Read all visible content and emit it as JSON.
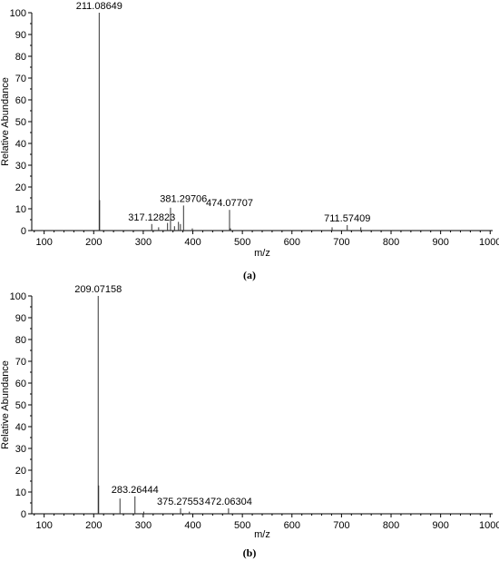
{
  "chart_data": [
    {
      "type": "bar",
      "caption": "(a)",
      "xlabel": "m/z",
      "ylabel": "Relative Abundance",
      "xlim": [
        75,
        1005
      ],
      "ylim": [
        0,
        100
      ],
      "x_ticks": [
        100,
        200,
        300,
        400,
        500,
        600,
        700,
        800,
        900,
        1000
      ],
      "y_ticks": [
        0,
        10,
        20,
        30,
        40,
        50,
        60,
        70,
        80,
        90,
        100
      ],
      "peaks": [
        {
          "x": 211.08649,
          "y": 100,
          "label": "211.08649"
        },
        {
          "x": 212.0,
          "y": 14
        },
        {
          "x": 317.12823,
          "y": 3,
          "label": "317.12823"
        },
        {
          "x": 331.0,
          "y": 1.5
        },
        {
          "x": 349.0,
          "y": 3.5
        },
        {
          "x": 355.0,
          "y": 10.5
        },
        {
          "x": 363.0,
          "y": 2
        },
        {
          "x": 371.0,
          "y": 4
        },
        {
          "x": 375.0,
          "y": 3
        },
        {
          "x": 381.29706,
          "y": 11.5,
          "label": "381.29706"
        },
        {
          "x": 399.0,
          "y": 1
        },
        {
          "x": 474.07707,
          "y": 9.5,
          "label": "474.07707"
        },
        {
          "x": 476.0,
          "y": 1
        },
        {
          "x": 681.0,
          "y": 1.5
        },
        {
          "x": 711.57409,
          "y": 2.5,
          "label": "711.57409"
        },
        {
          "x": 739.0,
          "y": 1.5
        }
      ]
    },
    {
      "type": "bar",
      "caption": "(b)",
      "xlabel": "m/z",
      "ylabel": "Relative Abundance",
      "xlim": [
        75,
        1005
      ],
      "ylim": [
        0,
        100
      ],
      "x_ticks": [
        100,
        200,
        300,
        400,
        500,
        600,
        700,
        800,
        900,
        1000
      ],
      "y_ticks": [
        0,
        10,
        20,
        30,
        40,
        50,
        60,
        70,
        80,
        90,
        100
      ],
      "peaks": [
        {
          "x": 209.07158,
          "y": 100,
          "label": "209.07158"
        },
        {
          "x": 210.0,
          "y": 13
        },
        {
          "x": 253.0,
          "y": 7
        },
        {
          "x": 283.26444,
          "y": 8,
          "label": "283.26444"
        },
        {
          "x": 301.0,
          "y": 1
        },
        {
          "x": 375.27553,
          "y": 2.5,
          "label": "375.27553"
        },
        {
          "x": 393.0,
          "y": 1
        },
        {
          "x": 472.06304,
          "y": 2.5,
          "label": "472.06304"
        }
      ]
    }
  ]
}
